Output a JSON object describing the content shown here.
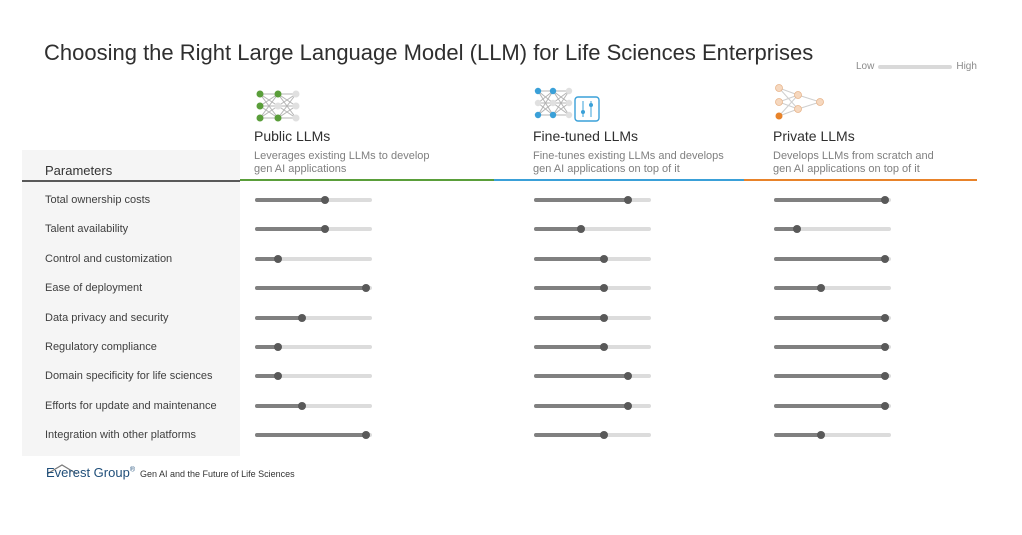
{
  "title": "Choosing the Right Large Language Model (LLM) for Life Sciences Enterprises",
  "legend": {
    "low": "Low",
    "high": "High"
  },
  "param_header": "Parameters",
  "colors": {
    "public": "#5a9e3a",
    "finetuned": "#3aa0d8",
    "private": "#e8832a",
    "track": "#dcdcdc",
    "fill": "#808080",
    "knob": "#595959"
  },
  "models": [
    {
      "name": "Public LLMs",
      "desc1": "Leverages existing LLMs to develop",
      "desc2": "gen AI applications",
      "icon": "neural-network-icon-green"
    },
    {
      "name": "Fine-tuned LLMs",
      "desc1": "Fine-tunes existing LLMs and develops",
      "desc2": "gen AI applications on top of it",
      "icon": "neural-network-tuning-icon-blue"
    },
    {
      "name": "Private LLMs",
      "desc1": "Develops LLMs from scratch and",
      "desc2": "gen AI applications on top of it",
      "icon": "neural-network-icon-orange"
    }
  ],
  "chart_data": {
    "type": "table",
    "scale": [
      "Low",
      "High"
    ],
    "parameters": [
      "Total ownership costs",
      "Talent availability",
      "Control and customization",
      "Ease of deployment",
      "Data privacy and security",
      "Regulatory compliance",
      "Domain specificity for life sciences",
      "Efforts for update and maintenance",
      "Integration with other platforms"
    ],
    "series": [
      {
        "name": "Public LLMs",
        "values": [
          0.6,
          0.6,
          0.2,
          0.95,
          0.4,
          0.2,
          0.2,
          0.4,
          0.95
        ]
      },
      {
        "name": "Fine-tuned LLMs",
        "values": [
          0.8,
          0.4,
          0.6,
          0.6,
          0.6,
          0.6,
          0.8,
          0.8,
          0.6
        ]
      },
      {
        "name": "Private LLMs",
        "values": [
          0.95,
          0.2,
          0.95,
          0.4,
          0.95,
          0.95,
          0.95,
          0.95,
          0.4
        ]
      }
    ]
  },
  "footer": {
    "brand": "Everest Group",
    "reg": "®",
    "text": "Gen AI and the Future of Life Sciences"
  }
}
